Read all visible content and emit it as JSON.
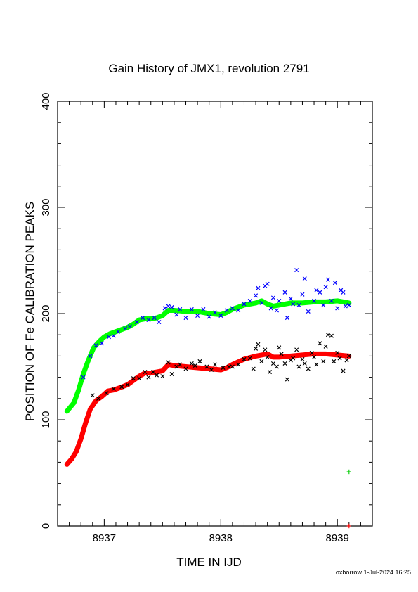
{
  "chart_data": {
    "type": "scatter",
    "title": "Gain History of JMX1, revolution 2791",
    "xlabel": "TIME IN IJD",
    "ylabel": "POSITION OF Fe CALIBRATION PEAKS",
    "xlim": [
      8936.6,
      8939.3
    ],
    "ylim": [
      0,
      400
    ],
    "x_ticks": [
      "8937",
      "8938",
      "8939"
    ],
    "x_tick_values": [
      8937,
      8938,
      8939
    ],
    "y_ticks": [
      "0",
      "100",
      "200",
      "300",
      "400"
    ],
    "y_tick_values": [
      0,
      100,
      200,
      300,
      400
    ],
    "grid": false,
    "series": [
      {
        "marker": "x",
        "color": "#0000ff",
        "trend_color": "#00ff00",
        "trend": [
          [
            8936.68,
            108
          ],
          [
            8936.74,
            116
          ],
          [
            8936.78,
            128
          ],
          [
            8936.82,
            143
          ],
          [
            8936.86,
            155
          ],
          [
            8936.91,
            168
          ],
          [
            8936.96,
            174
          ],
          [
            8937.0,
            178
          ],
          [
            8937.05,
            181
          ],
          [
            8937.1,
            183
          ],
          [
            8937.15,
            185
          ],
          [
            8937.2,
            187
          ],
          [
            8937.25,
            190
          ],
          [
            8937.3,
            194
          ],
          [
            8937.35,
            195
          ],
          [
            8937.4,
            195
          ],
          [
            8937.45,
            196
          ],
          [
            8937.5,
            198
          ],
          [
            8937.55,
            203
          ],
          [
            8937.6,
            203
          ],
          [
            8937.7,
            202
          ],
          [
            8937.8,
            202
          ],
          [
            8937.9,
            200
          ],
          [
            8938.0,
            199
          ],
          [
            8938.05,
            201
          ],
          [
            8938.1,
            204
          ],
          [
            8938.2,
            208
          ],
          [
            8938.3,
            210
          ],
          [
            8938.35,
            212
          ],
          [
            8938.4,
            209
          ],
          [
            8938.45,
            207
          ],
          [
            8938.5,
            208
          ],
          [
            8938.6,
            210
          ],
          [
            8938.7,
            210
          ],
          [
            8938.8,
            211
          ],
          [
            8938.9,
            211
          ],
          [
            8939.0,
            212
          ],
          [
            8939.1,
            210
          ]
        ],
        "points": [
          [
            8936.82,
            140
          ],
          [
            8936.88,
            160
          ],
          [
            8936.93,
            170
          ],
          [
            8936.98,
            172
          ],
          [
            8937.04,
            178
          ],
          [
            8937.08,
            179
          ],
          [
            8937.12,
            183
          ],
          [
            8937.18,
            186
          ],
          [
            8937.22,
            188
          ],
          [
            8937.28,
            192
          ],
          [
            8937.33,
            196
          ],
          [
            8937.38,
            194
          ],
          [
            8937.43,
            196
          ],
          [
            8937.47,
            192
          ],
          [
            8937.52,
            205
          ],
          [
            8937.55,
            207
          ],
          [
            8937.58,
            206
          ],
          [
            8937.62,
            199
          ],
          [
            8937.65,
            204
          ],
          [
            8937.7,
            196
          ],
          [
            8937.75,
            204
          ],
          [
            8937.8,
            198
          ],
          [
            8937.85,
            204
          ],
          [
            8937.9,
            197
          ],
          [
            8937.95,
            201
          ],
          [
            8938.0,
            198
          ],
          [
            8938.05,
            203
          ],
          [
            8938.1,
            205
          ],
          [
            8938.15,
            203
          ],
          [
            8938.2,
            209
          ],
          [
            8938.25,
            212
          ],
          [
            8938.3,
            217
          ],
          [
            8938.32,
            224
          ],
          [
            8938.35,
            210
          ],
          [
            8938.38,
            226
          ],
          [
            8938.4,
            228
          ],
          [
            8938.43,
            205
          ],
          [
            8938.45,
            215
          ],
          [
            8938.48,
            203
          ],
          [
            8938.5,
            212
          ],
          [
            8938.55,
            220
          ],
          [
            8938.57,
            196
          ],
          [
            8938.6,
            214
          ],
          [
            8938.62,
            209
          ],
          [
            8938.65,
            241
          ],
          [
            8938.67,
            208
          ],
          [
            8938.7,
            218
          ],
          [
            8938.72,
            233
          ],
          [
            8938.75,
            202
          ],
          [
            8938.8,
            212
          ],
          [
            8938.82,
            222
          ],
          [
            8938.85,
            220
          ],
          [
            8938.88,
            208
          ],
          [
            8938.9,
            225
          ],
          [
            8938.92,
            232
          ],
          [
            8938.95,
            212
          ],
          [
            8938.98,
            229
          ],
          [
            8939.0,
            205
          ],
          [
            8939.03,
            222
          ],
          [
            8939.05,
            220
          ],
          [
            8939.07,
            207
          ],
          [
            8939.1,
            208
          ]
        ]
      },
      {
        "marker": "x",
        "color": "#000000",
        "trend_color": "#ff0000",
        "trend": [
          [
            8936.68,
            58
          ],
          [
            8936.72,
            63
          ],
          [
            8936.76,
            70
          ],
          [
            8936.8,
            82
          ],
          [
            8936.84,
            97
          ],
          [
            8936.88,
            110
          ],
          [
            8936.93,
            118
          ],
          [
            8936.98,
            122
          ],
          [
            8937.03,
            127
          ],
          [
            8937.08,
            128
          ],
          [
            8937.13,
            130
          ],
          [
            8937.2,
            133
          ],
          [
            8937.25,
            137
          ],
          [
            8937.3,
            141
          ],
          [
            8937.35,
            144
          ],
          [
            8937.4,
            144
          ],
          [
            8937.45,
            145
          ],
          [
            8937.5,
            146
          ],
          [
            8937.55,
            152
          ],
          [
            8937.6,
            151
          ],
          [
            8937.7,
            150
          ],
          [
            8937.8,
            149
          ],
          [
            8937.9,
            148
          ],
          [
            8938.0,
            147
          ],
          [
            8938.05,
            149
          ],
          [
            8938.1,
            152
          ],
          [
            8938.2,
            157
          ],
          [
            8938.3,
            160
          ],
          [
            8938.35,
            161
          ],
          [
            8938.4,
            162
          ],
          [
            8938.45,
            159
          ],
          [
            8938.5,
            159
          ],
          [
            8938.6,
            160
          ],
          [
            8938.7,
            161
          ],
          [
            8938.8,
            162
          ],
          [
            8938.9,
            162
          ],
          [
            8939.0,
            161
          ],
          [
            8939.1,
            160
          ]
        ],
        "points": [
          [
            8936.9,
            123
          ],
          [
            8936.95,
            120
          ],
          [
            8937.02,
            125
          ],
          [
            8937.08,
            129
          ],
          [
            8937.15,
            131
          ],
          [
            8937.2,
            133
          ],
          [
            8937.25,
            139
          ],
          [
            8937.3,
            139
          ],
          [
            8937.35,
            145
          ],
          [
            8937.38,
            140
          ],
          [
            8937.42,
            145
          ],
          [
            8937.45,
            142
          ],
          [
            8937.5,
            141
          ],
          [
            8937.55,
            154
          ],
          [
            8937.58,
            143
          ],
          [
            8937.62,
            150
          ],
          [
            8937.65,
            152
          ],
          [
            8937.7,
            148
          ],
          [
            8937.75,
            153
          ],
          [
            8937.78,
            151
          ],
          [
            8937.82,
            155
          ],
          [
            8937.88,
            150
          ],
          [
            8937.92,
            147
          ],
          [
            8937.95,
            152
          ],
          [
            8938.02,
            149
          ],
          [
            8938.07,
            150
          ],
          [
            8938.1,
            150
          ],
          [
            8938.15,
            152
          ],
          [
            8938.2,
            157
          ],
          [
            8938.25,
            158
          ],
          [
            8938.28,
            148
          ],
          [
            8938.3,
            167
          ],
          [
            8938.32,
            171
          ],
          [
            8938.35,
            155
          ],
          [
            8938.38,
            166
          ],
          [
            8938.4,
            159
          ],
          [
            8938.42,
            145
          ],
          [
            8938.45,
            153
          ],
          [
            8938.48,
            150
          ],
          [
            8938.5,
            168
          ],
          [
            8938.52,
            162
          ],
          [
            8938.55,
            153
          ],
          [
            8938.57,
            138
          ],
          [
            8938.6,
            156
          ],
          [
            8938.62,
            158
          ],
          [
            8938.65,
            166
          ],
          [
            8938.67,
            150
          ],
          [
            8938.7,
            157
          ],
          [
            8938.72,
            153
          ],
          [
            8938.75,
            148
          ],
          [
            8938.78,
            163
          ],
          [
            8938.8,
            159
          ],
          [
            8938.82,
            152
          ],
          [
            8938.85,
            172
          ],
          [
            8938.88,
            155
          ],
          [
            8938.9,
            169
          ],
          [
            8938.92,
            180
          ],
          [
            8938.95,
            179
          ],
          [
            8938.97,
            155
          ],
          [
            8939.0,
            163
          ],
          [
            8939.02,
            158
          ],
          [
            8939.05,
            146
          ],
          [
            8939.08,
            156
          ],
          [
            8939.1,
            160
          ]
        ]
      }
    ],
    "extra_points": [
      {
        "x": 8939.1,
        "y": 51,
        "marker": "+",
        "color": "#00cc00"
      },
      {
        "x": 8939.1,
        "y": 0,
        "marker": "+",
        "color": "#ff0000"
      }
    ]
  },
  "footer": {
    "text": "oxborrow  1-Jul-2024 16:25"
  }
}
